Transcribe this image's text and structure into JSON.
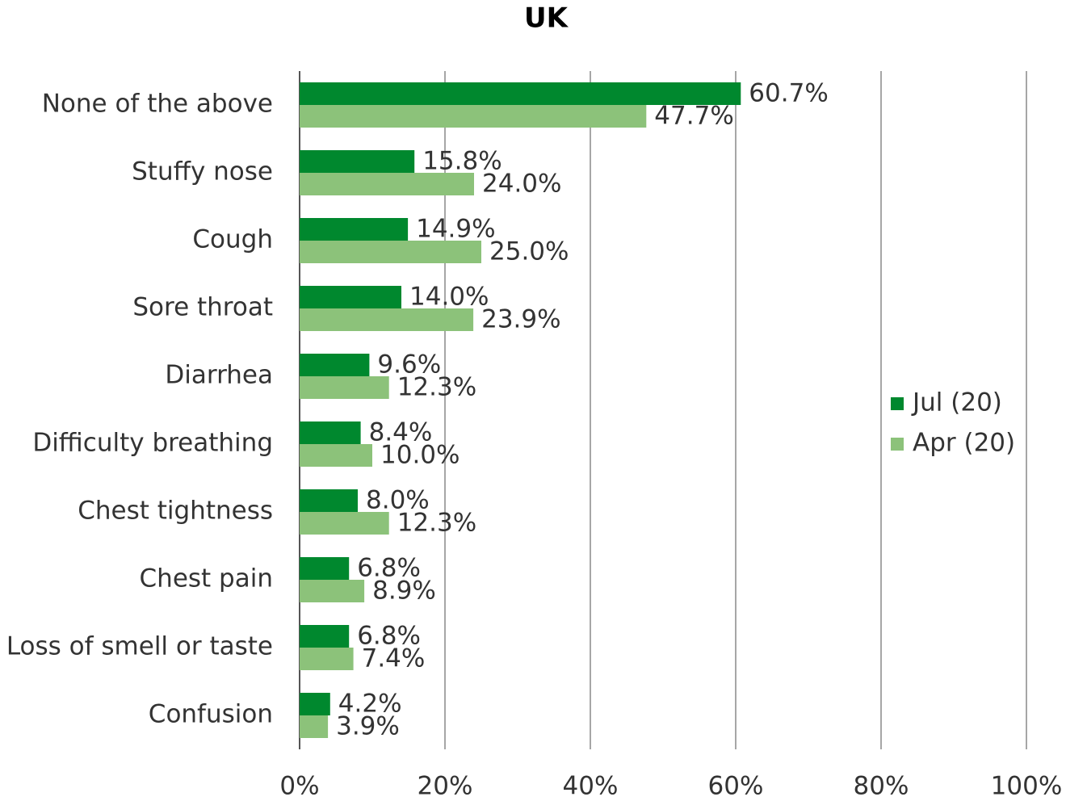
{
  "chart_data": {
    "type": "hbar",
    "title": "UK",
    "categories": [
      "None of the above",
      "Stuffy nose",
      "Cough",
      "Sore throat",
      "Diarrhea",
      "Difficulty breathing",
      "Chest tightness",
      "Chest pain",
      "Loss of smell or taste",
      "Confusion"
    ],
    "series": [
      {
        "name": "Jul (20)",
        "color": "#00882e",
        "values": [
          60.7,
          15.8,
          14.9,
          14.0,
          9.6,
          8.4,
          8.0,
          6.8,
          6.8,
          4.2
        ],
        "value_labels": [
          "60.7%",
          "15.8%",
          "14.9%",
          "14.0%",
          "9.6%",
          "8.4%",
          "8.0%",
          "6.8%",
          "6.8%",
          "4.2%"
        ]
      },
      {
        "name": "Apr (20)",
        "color": "#8cc27a",
        "values": [
          47.7,
          24.0,
          25.0,
          23.9,
          12.3,
          10.0,
          12.3,
          8.9,
          7.4,
          3.9
        ],
        "value_labels": [
          "47.7%",
          "24.0%",
          "25.0%",
          "23.9%",
          "12.3%",
          "10.0%",
          "12.3%",
          "8.9%",
          "7.4%",
          "3.9%"
        ]
      }
    ],
    "xlim": [
      0,
      100
    ],
    "xticks": [
      {
        "value": 0,
        "label": "0%"
      },
      {
        "value": 20,
        "label": "20%"
      },
      {
        "value": 40,
        "label": "40%"
      },
      {
        "value": 60,
        "label": "60%"
      },
      {
        "value": 80,
        "label": "80%"
      },
      {
        "value": 100,
        "label": "100%"
      }
    ],
    "grid": true,
    "legend": "right"
  }
}
